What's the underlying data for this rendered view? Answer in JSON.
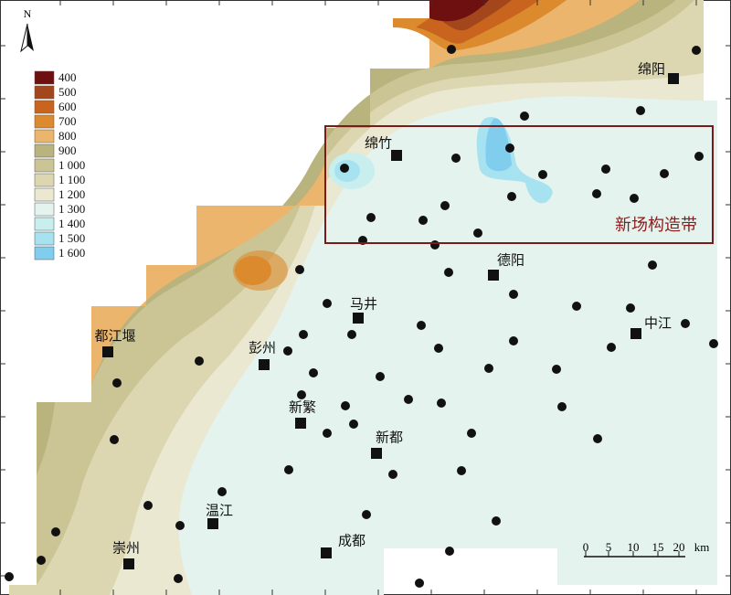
{
  "north": "N",
  "legend": [
    {
      "label": "400",
      "color": "#6e0f10"
    },
    {
      "label": "500",
      "color": "#a3461c"
    },
    {
      "label": "600",
      "color": "#c9641f"
    },
    {
      "label": "700",
      "color": "#dc8a2e"
    },
    {
      "label": "800",
      "color": "#ebb56e"
    },
    {
      "label": "900",
      "color": "#b9b37e"
    },
    {
      "label": "1 000",
      "color": "#cbc596"
    },
    {
      "label": "1 100",
      "color": "#dcd7b1"
    },
    {
      "label": "1 200",
      "color": "#ebe8d2"
    },
    {
      "label": "1 300",
      "color": "#e4f3ee"
    },
    {
      "label": "1 400",
      "color": "#c8eeee"
    },
    {
      "label": "1 500",
      "color": "#a6e2ef"
    },
    {
      "label": "1 600",
      "color": "#80cdee"
    }
  ],
  "cities": [
    {
      "name": "绵阳"
    },
    {
      "name": "绵竹"
    },
    {
      "name": "德阳"
    },
    {
      "name": "马井"
    },
    {
      "name": "中江"
    },
    {
      "name": "都江堰"
    },
    {
      "name": "彭州"
    },
    {
      "name": "新繁"
    },
    {
      "name": "新都"
    },
    {
      "name": "温江"
    },
    {
      "name": "成都"
    },
    {
      "name": "崇州"
    }
  ],
  "region_label": "新场构造带",
  "scale": {
    "ticks": [
      "0",
      "5",
      "10",
      "15",
      "20"
    ],
    "unit": "km"
  }
}
